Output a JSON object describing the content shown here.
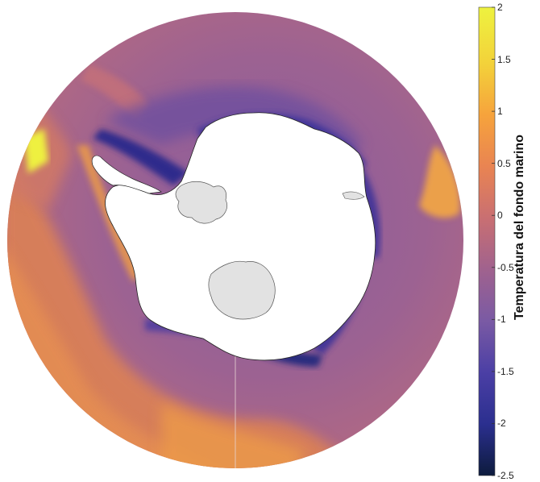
{
  "colorbar": {
    "title": "Temperatura del fondo marino",
    "ticks": [
      "2",
      "1.5",
      "1",
      "0.5",
      "0",
      "-0.5",
      "-1",
      "-1.5",
      "-2",
      "-2.5"
    ],
    "min": -2.5,
    "max": 2,
    "stops": [
      "#0d1b3d",
      "#2b2f8f",
      "#4b3fa5",
      "#7a5aa4",
      "#a0628e",
      "#c96f72",
      "#e98452",
      "#f6a33c",
      "#f3d23a",
      "#eef23f"
    ]
  },
  "map": {
    "projection": "south-polar-stereographic",
    "ocean_colors": {
      "cold": "#3a3398",
      "cool": "#7d5aa2",
      "mid": "#a06690",
      "warm": "#d97e5e",
      "hot": "#f2a846",
      "hottest": "#eef03f"
    },
    "land_color": "#ffffff",
    "ice_shelf_color": "#e2e2e2"
  }
}
